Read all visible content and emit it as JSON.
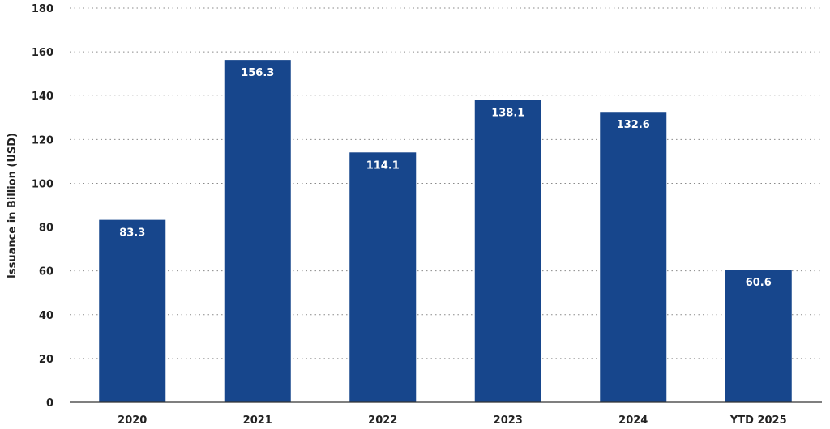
{
  "chart_data": {
    "type": "bar",
    "categories": [
      "2020",
      "2021",
      "2022",
      "2023",
      "2024",
      "YTD 2025"
    ],
    "values": [
      83.3,
      156.3,
      114.1,
      138.1,
      132.6,
      60.6
    ],
    "value_labels": [
      "83.3",
      "156.3",
      "114.1",
      "138.1",
      "132.6",
      "60.6"
    ],
    "title": "",
    "xlabel": "",
    "ylabel": "Issuance in Billion (USD)",
    "ylim": [
      0,
      180
    ],
    "yticks": [
      0,
      20,
      40,
      60,
      80,
      100,
      120,
      140,
      160,
      180
    ],
    "grid": true,
    "legend": "none",
    "bar_color": "#17468c"
  }
}
